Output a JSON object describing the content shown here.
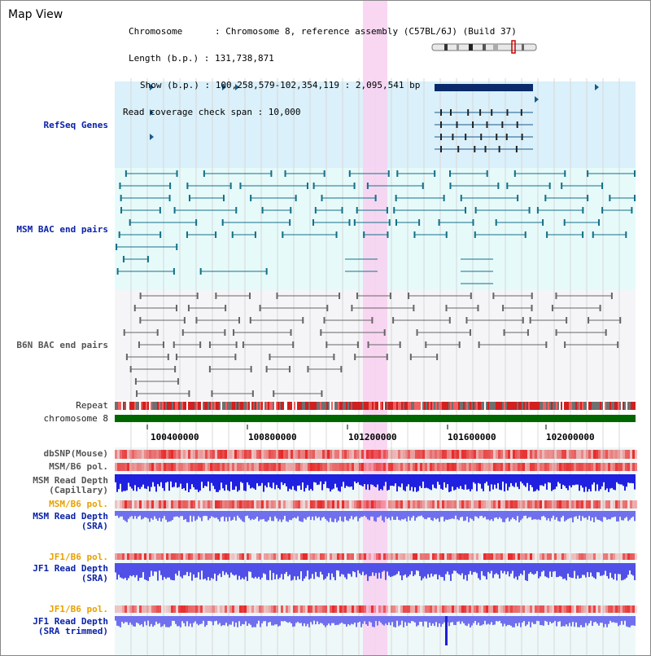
{
  "title": "Map View",
  "info": {
    "chromosome": "Chromosome      : Chromosome 8, reference assembly (C57BL/6J) (Build 37)",
    "length": "Length (b.p.) : 131,738,871",
    "show": "Show (b.p.) : 100,258,579-102,354,119 : 2,095,541 bp",
    "read_check": "Read coverage check span : 10,000"
  },
  "tracks": {
    "refseq": "RefSeq Genes",
    "msm_bac": "MSM BAC end pairs",
    "b6n_bac": "B6N BAC end pairs",
    "repeat": "Repeat",
    "chromosome": "chromosome 8",
    "dbsnp": "dbSNP(Mouse)",
    "msm_b6_pol_1": "MSM/B6 pol.",
    "msm_read_cap_1": "MSM Read Depth",
    "msm_read_cap_2": "(Capillary)",
    "msm_b6_pol_2": "MSM/B6 pol.",
    "msm_read_sra_1": "MSM Read Depth",
    "msm_read_sra_2": "(SRA)",
    "jf1_b6_pol_1": "JF1/B6 pol.",
    "jf1_read_sra_1": "JF1 Read Depth",
    "jf1_read_sra_2": "(SRA)",
    "jf1_b6_pol_2": "JF1/B6 pol.",
    "jf1_trim_1": "JF1 Read Depth",
    "jf1_trim_2": "(SRA trimmed)"
  },
  "axis_ticks": [
    "100400000",
    "100800000",
    "101200000",
    "101600000",
    "102000000"
  ],
  "colors": {
    "refseq_bg": "#daf0fa",
    "bac_bg": "#e6fafa",
    "highlight": "#f8d0f0",
    "chrom_green": "#006600",
    "depth_blue": "#2020e0"
  }
}
